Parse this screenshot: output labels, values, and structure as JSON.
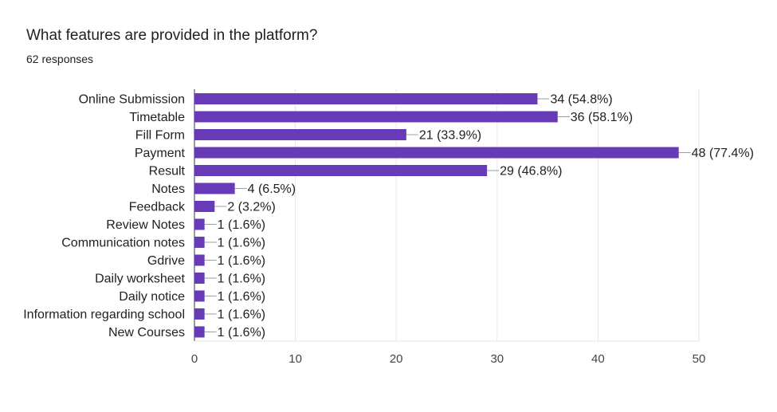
{
  "header": {
    "title": "What features are provided in the platform?",
    "responses": "62 responses"
  },
  "colors": {
    "bar": "#673ab7",
    "grid": "#e6e6e6",
    "axis": "#333333",
    "leader": "#9e9e9e"
  },
  "chart_data": {
    "type": "bar",
    "orientation": "horizontal",
    "title": "What features are provided in the platform?",
    "categories": [
      "Online Submission",
      "Timetable",
      "Fill Form",
      "Payment",
      "Result",
      "Notes",
      "Feedback",
      "Review Notes",
      "Communication notes",
      "Gdrive",
      "Daily worksheet",
      "Daily notice",
      "Information regarding school",
      "New Courses"
    ],
    "values": [
      34,
      36,
      21,
      48,
      29,
      4,
      2,
      1,
      1,
      1,
      1,
      1,
      1,
      1
    ],
    "data_labels": [
      "34 (54.8%)",
      "36 (58.1%)",
      "21 (33.9%)",
      "48 (77.4%)",
      "29 (46.8%)",
      "4 (6.5%)",
      "2 (3.2%)",
      "1 (1.6%)",
      "1 (1.6%)",
      "1 (1.6%)",
      "1 (1.6%)",
      "1 (1.6%)",
      "1 (1.6%)",
      "1 (1.6%)"
    ],
    "xlim": [
      0,
      50
    ],
    "xticks": [
      "0",
      "10",
      "20",
      "30",
      "40",
      "50"
    ],
    "grid": true,
    "xlabel": "",
    "ylabel": ""
  }
}
